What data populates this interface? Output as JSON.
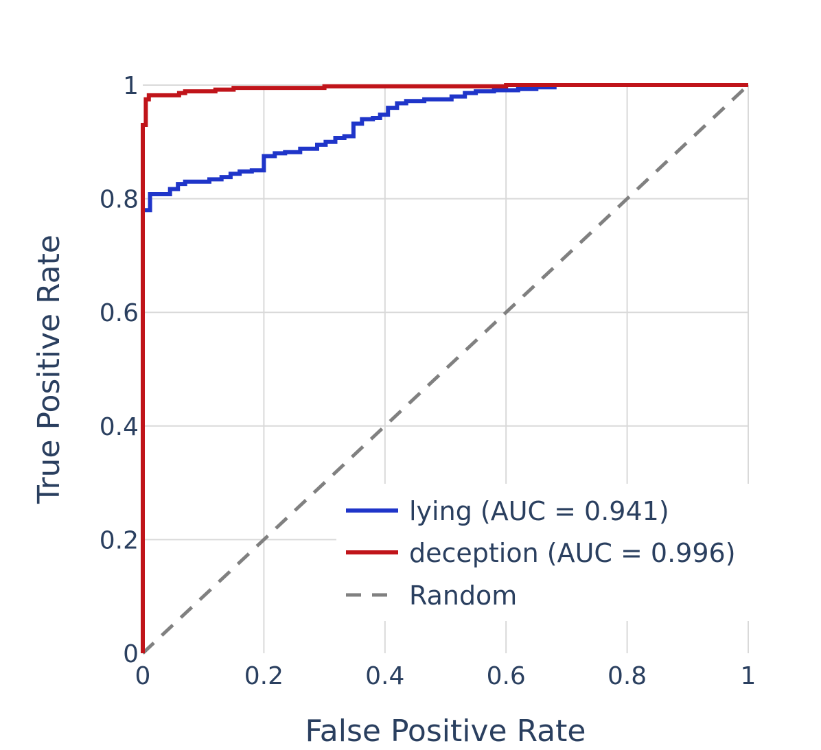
{
  "chart_data": {
    "type": "line",
    "title": "",
    "xlabel": "False Positive Rate",
    "ylabel": "True Positive Rate",
    "xlim": [
      0,
      1
    ],
    "ylim": [
      0,
      1
    ],
    "xticks": [
      0,
      0.2,
      0.4,
      0.6,
      0.8,
      1
    ],
    "xtick_labels": [
      "0",
      "0.2",
      "0.4",
      "0.6",
      "0.8",
      "1"
    ],
    "yticks": [
      0,
      0.2,
      0.4,
      0.6,
      0.8,
      1
    ],
    "ytick_labels": [
      "0",
      "0.2",
      "0.4",
      "0.6",
      "0.8",
      "1"
    ],
    "grid": true,
    "legend_position": "bottom-right",
    "series": [
      {
        "name": "lying (AUC = 0.941)",
        "color": "#1f35c9",
        "style": "solid",
        "points": [
          [
            0,
            0
          ],
          [
            0,
            0.78
          ],
          [
            0.012,
            0.78
          ],
          [
            0.012,
            0.808
          ],
          [
            0.045,
            0.808
          ],
          [
            0.045,
            0.817
          ],
          [
            0.058,
            0.817
          ],
          [
            0.058,
            0.826
          ],
          [
            0.07,
            0.826
          ],
          [
            0.07,
            0.83
          ],
          [
            0.11,
            0.83
          ],
          [
            0.11,
            0.834
          ],
          [
            0.13,
            0.834
          ],
          [
            0.13,
            0.838
          ],
          [
            0.145,
            0.838
          ],
          [
            0.145,
            0.844
          ],
          [
            0.16,
            0.844
          ],
          [
            0.16,
            0.848
          ],
          [
            0.18,
            0.848
          ],
          [
            0.18,
            0.85
          ],
          [
            0.2,
            0.85
          ],
          [
            0.2,
            0.875
          ],
          [
            0.218,
            0.875
          ],
          [
            0.218,
            0.88
          ],
          [
            0.235,
            0.88
          ],
          [
            0.235,
            0.882
          ],
          [
            0.26,
            0.882
          ],
          [
            0.26,
            0.888
          ],
          [
            0.288,
            0.888
          ],
          [
            0.288,
            0.895
          ],
          [
            0.302,
            0.895
          ],
          [
            0.302,
            0.9
          ],
          [
            0.318,
            0.9
          ],
          [
            0.318,
            0.907
          ],
          [
            0.333,
            0.907
          ],
          [
            0.333,
            0.91
          ],
          [
            0.348,
            0.91
          ],
          [
            0.348,
            0.932
          ],
          [
            0.362,
            0.932
          ],
          [
            0.362,
            0.94
          ],
          [
            0.38,
            0.94
          ],
          [
            0.38,
            0.942
          ],
          [
            0.392,
            0.942
          ],
          [
            0.392,
            0.948
          ],
          [
            0.405,
            0.948
          ],
          [
            0.405,
            0.96
          ],
          [
            0.42,
            0.96
          ],
          [
            0.42,
            0.968
          ],
          [
            0.435,
            0.968
          ],
          [
            0.435,
            0.972
          ],
          [
            0.465,
            0.972
          ],
          [
            0.465,
            0.975
          ],
          [
            0.51,
            0.975
          ],
          [
            0.51,
            0.98
          ],
          [
            0.532,
            0.98
          ],
          [
            0.532,
            0.986
          ],
          [
            0.55,
            0.986
          ],
          [
            0.55,
            0.989
          ],
          [
            0.58,
            0.989
          ],
          [
            0.58,
            0.991
          ],
          [
            0.62,
            0.991
          ],
          [
            0.62,
            0.993
          ],
          [
            0.65,
            0.993
          ],
          [
            0.65,
            0.996
          ],
          [
            0.68,
            0.996
          ],
          [
            0.68,
            1
          ],
          [
            1,
            1
          ]
        ]
      },
      {
        "name": "deception (AUC = 0.996)",
        "color": "#c0141a",
        "style": "solid",
        "points": [
          [
            0,
            0
          ],
          [
            0,
            0.93
          ],
          [
            0.005,
            0.93
          ],
          [
            0.005,
            0.975
          ],
          [
            0.01,
            0.975
          ],
          [
            0.01,
            0.982
          ],
          [
            0.06,
            0.982
          ],
          [
            0.06,
            0.986
          ],
          [
            0.07,
            0.986
          ],
          [
            0.07,
            0.989
          ],
          [
            0.12,
            0.989
          ],
          [
            0.12,
            0.992
          ],
          [
            0.15,
            0.992
          ],
          [
            0.15,
            0.995
          ],
          [
            0.3,
            0.995
          ],
          [
            0.3,
            0.998
          ],
          [
            0.6,
            0.998
          ],
          [
            0.6,
            1
          ],
          [
            1,
            1
          ]
        ]
      },
      {
        "name": "Random",
        "color": "#808080",
        "style": "dashed",
        "points": [
          [
            0,
            0
          ],
          [
            1,
            1
          ]
        ]
      }
    ]
  }
}
